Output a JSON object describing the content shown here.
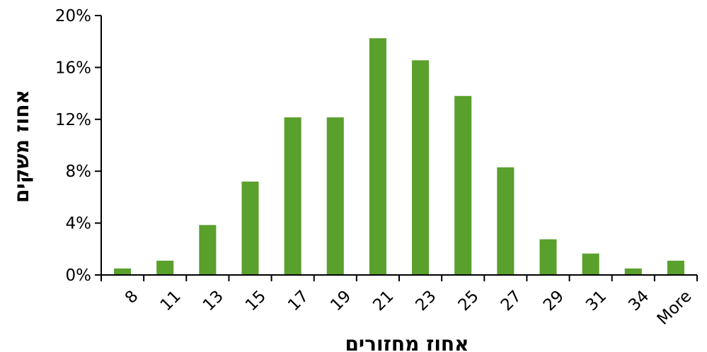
{
  "chart_data": {
    "type": "bar",
    "categories": [
      "8",
      "11",
      "13",
      "15",
      "17",
      "19",
      "21",
      "23",
      "25",
      "27",
      "29",
      "31",
      "34",
      "More"
    ],
    "values": [
      0.5,
      1.1,
      3.85,
      7.2,
      12.15,
      12.15,
      18.25,
      16.55,
      13.8,
      8.3,
      2.75,
      1.65,
      0.5,
      1.1
    ],
    "title": "",
    "xlabel": "אחוז מחזורים",
    "ylabel": "אחוז משקים",
    "ylim": [
      0,
      20
    ],
    "yticks": [
      "0%",
      "4%",
      "8%",
      "12%",
      "16%",
      "20%"
    ],
    "grid": false,
    "legend": "none",
    "bar_color": "#5aa02c"
  }
}
